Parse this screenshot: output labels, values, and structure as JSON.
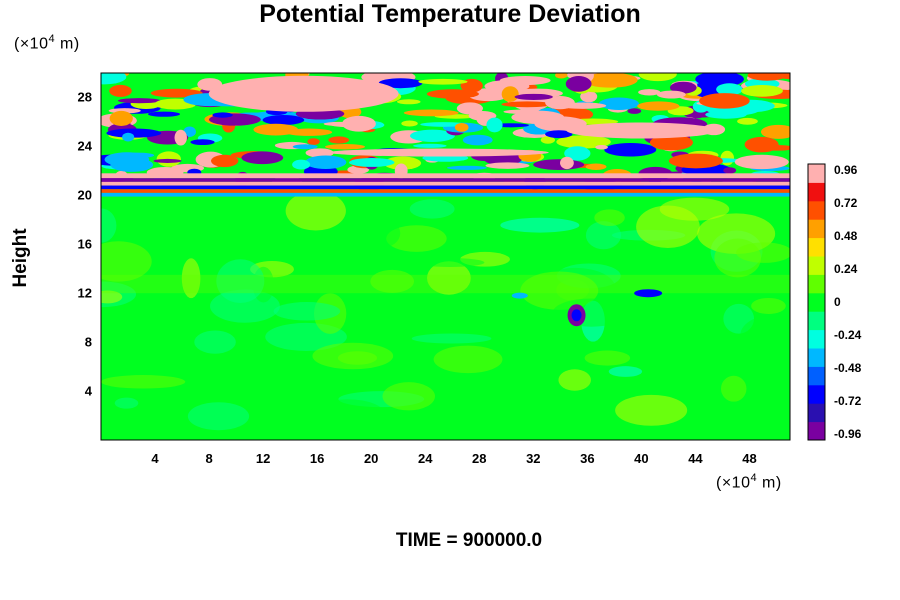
{
  "chart_data": {
    "type": "heatmap",
    "title": "Potential Temperature Deviation",
    "ylabel": "Height",
    "y_unit": {
      "prefix": "(×10",
      "exp": "4",
      "suffix": " m)"
    },
    "x_unit": {
      "prefix": "(×10",
      "exp": "4",
      "suffix": " m)"
    },
    "xlim": [
      0,
      51
    ],
    "ylim": [
      0,
      30
    ],
    "x_ticks": [
      4,
      8,
      12,
      16,
      20,
      24,
      28,
      32,
      36,
      40,
      44,
      48
    ],
    "y_ticks": [
      4,
      8,
      12,
      16,
      20,
      24,
      28
    ],
    "colorbar": {
      "ticks": [
        "0.96",
        "0.72",
        "0.48",
        "0.24",
        "0",
        "-0.24",
        "-0.48",
        "-0.72",
        "-0.96"
      ],
      "range": [
        -0.96,
        0.96
      ]
    },
    "field_features": [
      {
        "region": "below ~20 (×10^4 m)",
        "value_approx": 0.0,
        "description": "near-zero field"
      },
      {
        "region": "~20-21 (×10^4 m)",
        "value_approx": 0.96,
        "description": "strong alternating horizontal bands"
      },
      {
        "region": "~21-30 (×10^4 m)",
        "value_approx": 0.96,
        "description": "turbulent large-amplitude positive/negative patches"
      },
      {
        "region": "x≈35, y≈10",
        "value_approx": -0.96,
        "description": "localized negative anomaly"
      },
      {
        "region": "x≈40, y≈12",
        "value_approx": -0.72,
        "description": "localized negative anomaly"
      }
    ]
  },
  "footer": {
    "time_label": "TIME = 900000.0"
  },
  "colors": {
    "palette": [
      "#7a00a0",
      "#2a10b0",
      "#0000ff",
      "#0060ff",
      "#00b8ff",
      "#00ffe0",
      "#00ff80",
      "#00ff20",
      "#60ff00",
      "#c0ff00",
      "#ffe000",
      "#ffa000",
      "#ff5000",
      "#f01010",
      "#ffb0b0"
    ]
  }
}
